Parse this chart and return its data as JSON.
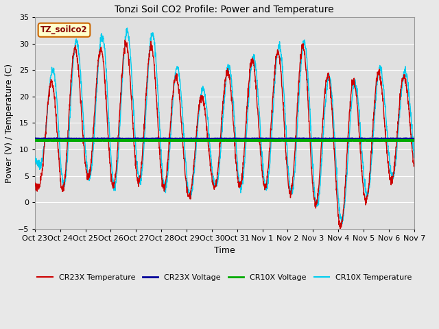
{
  "title": "Tonzi Soil CO2 Profile: Power and Temperature",
  "xlabel": "Time",
  "ylabel": "Power (V) / Temperature (C)",
  "ylim": [
    -5,
    35
  ],
  "yticks": [
    -5,
    0,
    5,
    10,
    15,
    20,
    25,
    30,
    35
  ],
  "xtick_labels": [
    "Oct 23",
    "Oct 24",
    "Oct 25",
    "Oct 26",
    "Oct 27",
    "Oct 28",
    "Oct 29",
    "Oct 30",
    "Oct 31",
    "Nov 1",
    "Nov 2",
    "Nov 3",
    "Nov 4",
    "Nov 5",
    "Nov 6",
    "Nov 7"
  ],
  "annotation_text": "TZ_soilco2",
  "cr23x_temp_color": "#cc0000",
  "cr23x_volt_color": "#000099",
  "cr10x_volt_color": "#00aa00",
  "cr10x_temp_color": "#00ccee",
  "cr23x_volt_level": 12.0,
  "cr10x_volt_level": 11.7,
  "background_color": "#e8e8e8",
  "plot_bg_color": "#e0e0e0",
  "grid_color": "#ffffff",
  "legend_labels": [
    "CR23X Temperature",
    "CR23X Voltage",
    "CR10X Voltage",
    "CR10X Temperature"
  ]
}
